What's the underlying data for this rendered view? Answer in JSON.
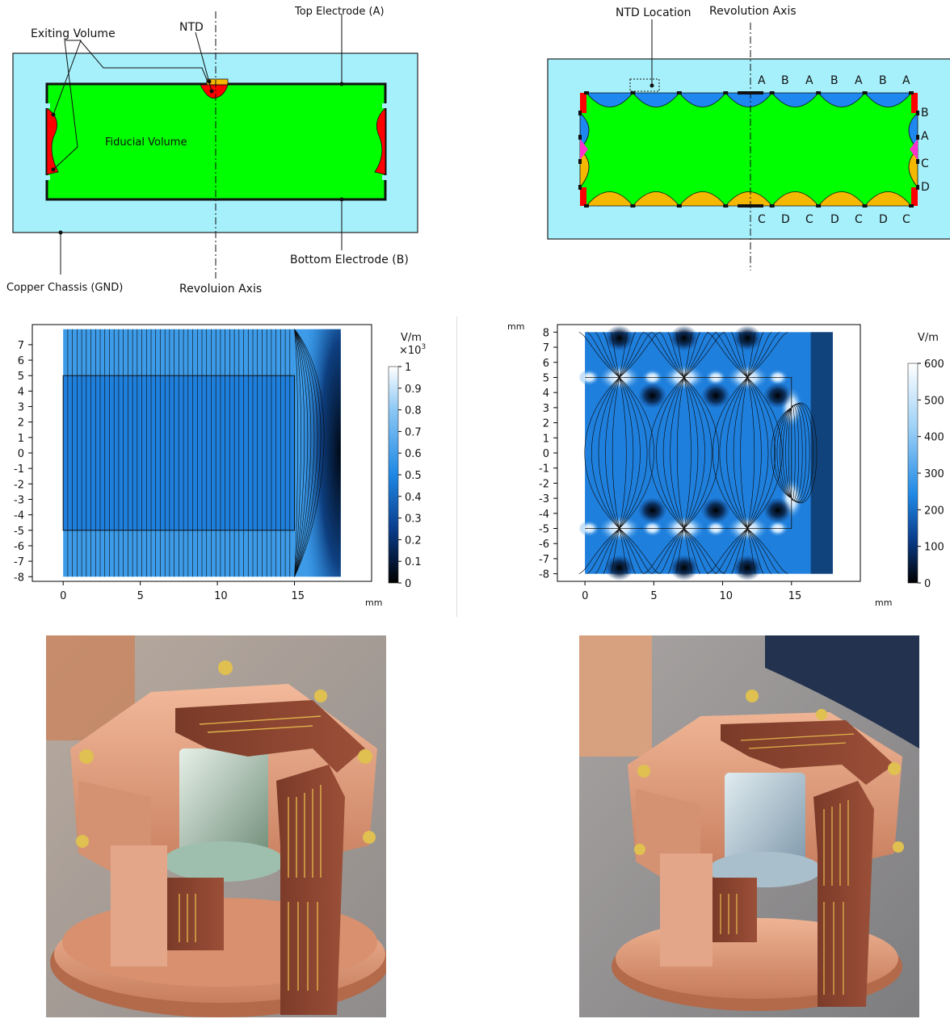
{
  "figure": {
    "panel_a": {
      "labels": {
        "exiting_volume": "Exiting Volume",
        "ntd": "NTD",
        "top_electrode": "Top Electrode (A)",
        "fiducial_volume": "Fiducial Volume",
        "bottom_electrode": "Bottom Electrode (B)",
        "copper_chassis": "Copper Chassis (GND)",
        "revolution_axis": "Revoluion Axis"
      },
      "colors": {
        "chassis": "#a6f0fb",
        "fiducial": "#00ff00",
        "exiting": "#ff0000",
        "ntd": "#f5b800"
      }
    },
    "panel_b": {
      "labels": {
        "ntd_location": "NTD Location",
        "revolution_axis": "Revolution Axis"
      },
      "top_electrodes": [
        "A",
        "B",
        "A",
        "B",
        "A",
        "B",
        "A"
      ],
      "bottom_electrodes": [
        "C",
        "D",
        "C",
        "D",
        "C",
        "D",
        "C"
      ],
      "side_electrodes": [
        "B",
        "A",
        "C",
        "D"
      ],
      "colors": {
        "chassis": "#a6f0fb",
        "fiducial": "#00ff00",
        "top_exit": "#1e88f0",
        "bottom_exit": "#f5b800",
        "side_pink": "#ff33cc",
        "corner_red": "#ff0000"
      }
    },
    "panel_c": {
      "unit_label": "V/m",
      "colorbar_label": "V/m",
      "colorbar_exponent": "×10",
      "colorbar_exponent_sup": "3",
      "x_unit": "mm"
    },
    "panel_d": {
      "y_unit": "mm",
      "x_unit": "mm",
      "colorbar_label": "V/m"
    },
    "photo_e": {
      "caption": ""
    },
    "photo_f": {
      "caption": ""
    }
  },
  "chart_data": [
    {
      "type": "heatmap",
      "title": "",
      "xlabel": "mm",
      "ylabel": "",
      "xlim": [
        -2,
        20
      ],
      "ylim": [
        -8.3,
        8.3
      ],
      "x_ticks": [
        0,
        5,
        10,
        15
      ],
      "y_ticks": [
        7,
        6,
        5,
        4,
        3,
        2,
        1,
        0,
        -1,
        -2,
        -3,
        -4,
        -5,
        -6,
        -7,
        -8
      ],
      "colorbar": {
        "label": "V/m",
        "scale": "×10^3",
        "ticks": [
          1,
          0.9,
          0.8,
          0.7,
          0.6,
          0.5,
          0.4,
          0.3,
          0.2,
          0.1,
          0
        ],
        "range": [
          0,
          1
        ]
      }
    },
    {
      "type": "heatmap",
      "title": "",
      "xlabel": "mm",
      "ylabel": "mm",
      "xlim": [
        -2,
        20
      ],
      "ylim": [
        -8.5,
        8.5
      ],
      "x_ticks": [
        0,
        5,
        10,
        15
      ],
      "y_ticks": [
        8,
        7,
        6,
        5,
        4,
        3,
        2,
        1,
        0,
        -1,
        -2,
        -3,
        -4,
        -5,
        -6,
        -7,
        -8
      ],
      "colorbar": {
        "label": "V/m",
        "ticks": [
          600,
          500,
          400,
          300,
          200,
          100,
          0
        ],
        "range": [
          0,
          600
        ]
      }
    }
  ]
}
